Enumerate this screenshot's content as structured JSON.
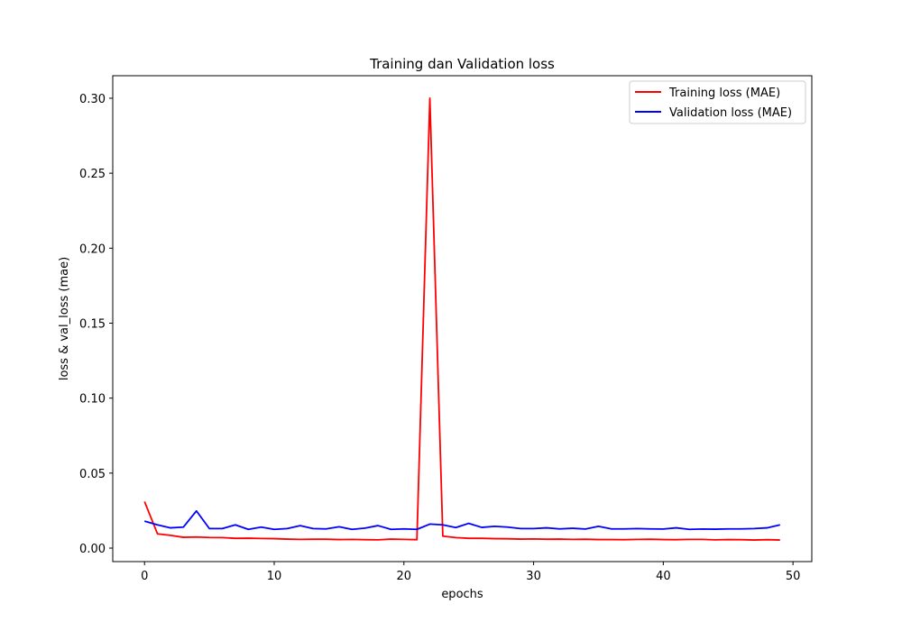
{
  "chart_data": {
    "type": "line",
    "title": "Training dan Validation loss",
    "xlabel": "epochs",
    "ylabel": "loss & val_loss (mae)",
    "xlim": [
      -2.45,
      51.45
    ],
    "ylim": [
      -0.009,
      0.315
    ],
    "xticks": [
      0,
      10,
      20,
      30,
      40,
      50
    ],
    "xtick_labels": [
      "0",
      "10",
      "20",
      "30",
      "40",
      "50"
    ],
    "yticks": [
      0.0,
      0.05,
      0.1,
      0.15,
      0.2,
      0.25,
      0.3
    ],
    "ytick_labels": [
      "0.00",
      "0.05",
      "0.10",
      "0.15",
      "0.20",
      "0.25",
      "0.30"
    ],
    "grid": false,
    "legend_position": "top-right",
    "x": [
      0,
      1,
      2,
      3,
      4,
      5,
      6,
      7,
      8,
      9,
      10,
      11,
      12,
      13,
      14,
      15,
      16,
      17,
      18,
      19,
      20,
      21,
      22,
      23,
      24,
      25,
      26,
      27,
      28,
      29,
      30,
      31,
      32,
      33,
      34,
      35,
      36,
      37,
      38,
      39,
      40,
      41,
      42,
      43,
      44,
      45,
      46,
      47,
      48,
      49
    ],
    "series": [
      {
        "name": "Training loss (MAE)",
        "color": "#ff0000",
        "values": [
          0.031,
          0.0095,
          0.0085,
          0.0072,
          0.0074,
          0.0071,
          0.007,
          0.0065,
          0.0066,
          0.0064,
          0.0063,
          0.006,
          0.0058,
          0.0059,
          0.0059,
          0.0057,
          0.0058,
          0.0056,
          0.0055,
          0.006,
          0.0058,
          0.0056,
          0.3,
          0.008,
          0.007,
          0.0065,
          0.0065,
          0.0063,
          0.0062,
          0.006,
          0.0061,
          0.0059,
          0.006,
          0.0058,
          0.0059,
          0.0057,
          0.0057,
          0.0056,
          0.0058,
          0.0059,
          0.0057,
          0.0056,
          0.0058,
          0.0058,
          0.0055,
          0.0057,
          0.0056,
          0.0054,
          0.0056,
          0.0054
        ]
      },
      {
        "name": "Validation loss (MAE)",
        "color": "#0000ff",
        "values": [
          0.018,
          0.0155,
          0.0135,
          0.014,
          0.0248,
          0.013,
          0.013,
          0.0155,
          0.0125,
          0.014,
          0.0125,
          0.013,
          0.015,
          0.013,
          0.0128,
          0.0142,
          0.0125,
          0.0133,
          0.015,
          0.0125,
          0.0128,
          0.0125,
          0.016,
          0.0155,
          0.0137,
          0.0165,
          0.0138,
          0.0145,
          0.014,
          0.013,
          0.013,
          0.0135,
          0.0128,
          0.0132,
          0.0127,
          0.0145,
          0.0128,
          0.0128,
          0.013,
          0.0128,
          0.0127,
          0.0135,
          0.0125,
          0.0127,
          0.0126,
          0.0128,
          0.0128,
          0.013,
          0.0135,
          0.0155
        ]
      }
    ]
  }
}
